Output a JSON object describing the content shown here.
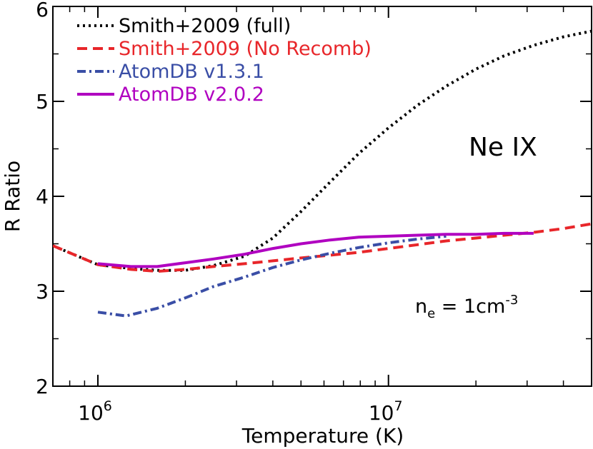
{
  "chart_data": {
    "type": "line",
    "xlabel": "Temperature (K)",
    "ylabel": "R Ratio",
    "x_scale": "log",
    "xlim": [
      700000,
      50000000
    ],
    "ylim": [
      2,
      6
    ],
    "x_tick_labels": [
      {
        "value": 1000000,
        "base": "10",
        "exp": "6"
      },
      {
        "value": 10000000,
        "base": "10",
        "exp": "7"
      }
    ],
    "y_ticks": [
      2,
      3,
      4,
      5,
      6
    ],
    "y_tick_labels": [
      "2",
      "3",
      "4",
      "5",
      "6"
    ],
    "legend_position": "top-left",
    "grid": false,
    "annotations": {
      "ion": "Ne IX",
      "density_prefix": "n",
      "density_sub": "e",
      "density_mid": " = 1cm",
      "density_sup": "-3"
    },
    "series": [
      {
        "name": "Smith+2009 (full)",
        "color": "#000000",
        "style": "dotted",
        "x": [
          700000,
          1000000,
          1300000,
          1600000,
          2000000,
          2500000,
          3200000,
          4000000,
          5000000,
          6300000,
          7900000,
          10000000,
          12600000,
          15800000,
          20000000,
          25000000,
          31600000,
          40000000,
          50000000
        ],
        "y": [
          3.48,
          3.28,
          3.24,
          3.22,
          3.22,
          3.27,
          3.37,
          3.56,
          3.84,
          4.15,
          4.45,
          4.72,
          4.96,
          5.16,
          5.34,
          5.48,
          5.59,
          5.68,
          5.74
        ]
      },
      {
        "name": "Smith+2009 (No Recomb)",
        "color": "#e8262a",
        "style": "dashed",
        "x": [
          700000,
          1000000,
          1300000,
          1600000,
          2000000,
          2500000,
          3200000,
          4000000,
          5000000,
          6300000,
          7900000,
          10000000,
          12600000,
          15800000,
          20000000,
          25000000,
          31600000,
          40000000,
          50000000
        ],
        "y": [
          3.48,
          3.28,
          3.23,
          3.21,
          3.23,
          3.26,
          3.29,
          3.32,
          3.35,
          3.38,
          3.41,
          3.45,
          3.49,
          3.53,
          3.56,
          3.59,
          3.62,
          3.66,
          3.71
        ]
      },
      {
        "name": "AtomDB v1.3.1",
        "color": "#3a4ea6",
        "style": "dashdot",
        "x": [
          1000000,
          1250000,
          1600000,
          2000000,
          2500000,
          3200000,
          4000000,
          5000000,
          6300000,
          7900000,
          10000000,
          12600000,
          15800000
        ],
        "y": [
          2.78,
          2.74,
          2.82,
          2.93,
          3.05,
          3.15,
          3.25,
          3.33,
          3.4,
          3.46,
          3.51,
          3.55,
          3.58
        ]
      },
      {
        "name": "AtomDB v2.0.2",
        "color": "#b000c0",
        "style": "solid",
        "x": [
          1000000,
          1300000,
          1600000,
          2000000,
          2500000,
          3200000,
          4000000,
          5000000,
          6300000,
          7900000,
          10000000,
          12600000,
          15800000,
          20000000,
          25000000,
          31600000
        ],
        "y": [
          3.29,
          3.26,
          3.26,
          3.3,
          3.34,
          3.39,
          3.45,
          3.5,
          3.54,
          3.57,
          3.58,
          3.59,
          3.6,
          3.6,
          3.61,
          3.61
        ]
      }
    ]
  }
}
